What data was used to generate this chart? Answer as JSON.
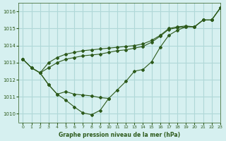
{
  "title": "Graphe pression niveau de la mer (hPa)",
  "bg_color": "#d6f0f0",
  "grid_color": "#b0d8d8",
  "line_color": "#2d5a1b",
  "xlim": [
    -0.5,
    23
  ],
  "ylim": [
    1009.5,
    1016.5
  ],
  "yticks": [
    1010,
    1011,
    1012,
    1013,
    1014,
    1015,
    1016
  ],
  "xticks": [
    0,
    1,
    2,
    3,
    4,
    5,
    6,
    7,
    8,
    9,
    10,
    11,
    12,
    13,
    14,
    15,
    16,
    17,
    18,
    19,
    20,
    21,
    22,
    23
  ],
  "series": [
    {
      "x": [
        0,
        1,
        2,
        3,
        4,
        5,
        6,
        7,
        8,
        9,
        10,
        11,
        12,
        13,
        14,
        15,
        16,
        17,
        18,
        19,
        20,
        21,
        22,
        23
      ],
      "y": [
        1013.2,
        1012.7,
        1012.4,
        1011.7,
        1011.15,
        1010.8,
        1010.4,
        1010.05,
        1009.95,
        1010.2,
        1010.9,
        1011.4,
        1011.9,
        1012.5,
        1012.6,
        1013.05,
        1013.9,
        1014.6,
        1014.9,
        1015.1,
        1015.1,
        1015.5,
        1015.5,
        1016.2
      ]
    },
    {
      "x": [
        0,
        1,
        2,
        3,
        4,
        5,
        6,
        7,
        8,
        9,
        10,
        11,
        12,
        13,
        14,
        15,
        16,
        17,
        18,
        19,
        20,
        21,
        22,
        23
      ],
      "y": [
        1013.2,
        1012.7,
        1012.4,
        1013.0,
        1013.3,
        1013.5,
        1013.6,
        1013.7,
        1013.75,
        1013.8,
        1013.85,
        1013.9,
        1013.95,
        1014.0,
        1014.1,
        1014.3,
        1014.6,
        1015.0,
        1015.1,
        1015.15,
        1015.1,
        1015.5,
        1015.5,
        1016.2
      ]
    },
    {
      "x": [
        0,
        1,
        2,
        3,
        4,
        5,
        6,
        7,
        8,
        9,
        10,
        11,
        12,
        13,
        14,
        15,
        16,
        17,
        18,
        19,
        20,
        21,
        22,
        23
      ],
      "y": [
        1013.2,
        1012.7,
        1012.4,
        1012.7,
        1013.0,
        1013.2,
        1013.3,
        1013.4,
        1013.45,
        1013.5,
        1013.6,
        1013.7,
        1013.75,
        1013.85,
        1013.95,
        1014.2,
        1014.55,
        1014.95,
        1015.05,
        1015.1,
        1015.1,
        1015.5,
        1015.5,
        1016.2
      ]
    },
    {
      "x": [
        2,
        3,
        4,
        5,
        6,
        7,
        8,
        9,
        10
      ],
      "y": [
        1012.4,
        1011.7,
        1011.15,
        1011.3,
        1011.15,
        1011.1,
        1011.05,
        1010.95,
        1010.9
      ]
    }
  ]
}
